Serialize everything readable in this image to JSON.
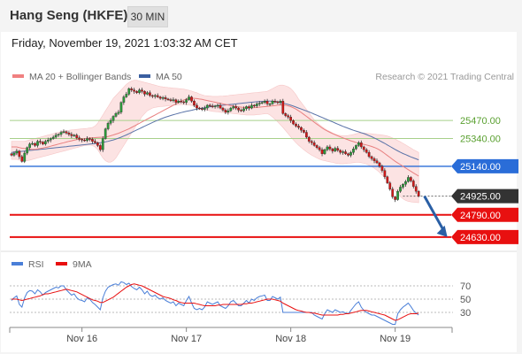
{
  "header": {
    "title": "Hang Seng (HKFE)",
    "timeframe": "30 MIN"
  },
  "datetime": "Friday, November 19, 2021 1:03:32 AM CET",
  "chart_data": [
    {
      "type": "candlestick",
      "legend": [
        {
          "label": "MA 20 + Bollinger Bands",
          "color": "#f08080"
        },
        {
          "label": "MA 50",
          "color": "#3a5fa0"
        }
      ],
      "watermark": "Research © 2021 Trading Central",
      "ylim": [
        24540,
        25790
      ],
      "levels": [
        {
          "label": "25470.00",
          "value": 25470,
          "kind": "resistance",
          "color": "#a8d08a"
        },
        {
          "label": "25340.00",
          "value": 25340,
          "kind": "resistance",
          "color": "#a8d08a"
        },
        {
          "label": "25140.00",
          "value": 25140,
          "kind": "pivot",
          "color": "#2a6dd8"
        },
        {
          "label": "24925.00",
          "value": 24925,
          "kind": "last",
          "color": "#333333"
        },
        {
          "label": "24790.00",
          "value": 24790,
          "kind": "support",
          "color": "#e81010"
        },
        {
          "label": "24630.00",
          "value": 24630,
          "kind": "support",
          "color": "#e81010"
        }
      ],
      "arrow": {
        "from": [
          158.2,
          24925
        ],
        "to": [
          167.0,
          24630
        ],
        "direction": "down",
        "color": "#2a5fa5"
      },
      "x_ticks": [
        {
          "label": "Nov 16",
          "index": 27
        },
        {
          "label": "Nov 17",
          "index": 67
        },
        {
          "label": "Nov 18",
          "index": 107
        },
        {
          "label": "Nov 19",
          "index": 147
        }
      ],
      "close": [
        25220,
        25235,
        25250,
        25210,
        25175,
        25235,
        25275,
        25300,
        25305,
        25290,
        25320,
        25315,
        25300,
        25320,
        25330,
        25340,
        25350,
        25365,
        25370,
        25385,
        25390,
        25380,
        25370,
        25360,
        25365,
        25345,
        25335,
        25330,
        25325,
        25340,
        25335,
        25320,
        25310,
        25290,
        25260,
        25340,
        25410,
        25450,
        25470,
        25500,
        25520,
        25530,
        25600,
        25640,
        25660,
        25700,
        25690,
        25680,
        25670,
        25690,
        25680,
        25660,
        25670,
        25650,
        25645,
        25650,
        25640,
        25630,
        25635,
        25625,
        25620,
        25615,
        25620,
        25600,
        25610,
        25605,
        25600,
        25620,
        25640,
        25610,
        25580,
        25560,
        25555,
        25550,
        25560,
        25580,
        25575,
        25570,
        25575,
        25580,
        25560,
        25545,
        25530,
        25540,
        25560,
        25570,
        25560,
        25545,
        25540,
        25555,
        25570,
        25560,
        25580,
        25575,
        25590,
        25595,
        25600,
        25610,
        25590,
        25590,
        25610,
        25605,
        25600,
        25610,
        25520,
        25505,
        25495,
        25470,
        25445,
        25430,
        25420,
        25400,
        25385,
        25350,
        25320,
        25310,
        25290,
        25275,
        25260,
        25230,
        25260,
        25280,
        25265,
        25250,
        25270,
        25255,
        25240,
        25245,
        25230,
        25220,
        25240,
        25265,
        25290,
        25310,
        25280,
        25260,
        25240,
        25210,
        25195,
        25180,
        25165,
        25140,
        25110,
        25065,
        25020,
        24975,
        24920,
        24900,
        24960,
        24990,
        25010,
        25030,
        25060,
        25035,
        24995,
        24960,
        24925
      ],
      "ma20": [
        25280,
        25280,
        25280,
        25275,
        25270,
        25268,
        25266,
        25264,
        25262,
        25262,
        25265,
        25268,
        25272,
        25276,
        25280,
        25285,
        25290,
        25295,
        25300,
        25305,
        25310,
        25315,
        25320,
        25324,
        25328,
        25332,
        25335,
        25338,
        25340,
        25342,
        25344,
        25346,
        25347,
        25348,
        25349,
        25350,
        25352,
        25355,
        25360,
        25366,
        25372,
        25378,
        25386,
        25394,
        25402,
        25410,
        25420,
        25430,
        25440,
        25450,
        25460,
        25470,
        25480,
        25490,
        25500,
        25510,
        25520,
        25530,
        25540,
        25550,
        25560,
        25570,
        25580,
        25590,
        25600,
        25610,
        25618,
        25624,
        25628,
        25630,
        25630,
        25628,
        25625,
        25622,
        25618,
        25614,
        25610,
        25606,
        25602,
        25598,
        25594,
        25590,
        25586,
        25582,
        25578,
        25574,
        25571,
        25568,
        25566,
        25564,
        25563,
        25562,
        25562,
        25563,
        25564,
        25566,
        25568,
        25570,
        25572,
        25574,
        25576,
        25578,
        25580,
        25582,
        25582,
        25580,
        25576,
        25570,
        25562,
        25552,
        25540,
        25528,
        25514,
        25500,
        25486,
        25472,
        25458,
        25444,
        25430,
        25416,
        25404,
        25394,
        25385,
        25376,
        25368,
        25360,
        25352,
        25345,
        25338,
        25331,
        25324,
        25318,
        25312,
        25307,
        25302,
        25298,
        25294,
        25289,
        25283,
        25276,
        25268,
        25258,
        25246,
        25232,
        25218,
        25204,
        25190,
        25176,
        25164,
        25152,
        25140,
        25128,
        25116,
        25104,
        25092,
        25081,
        25070
      ],
      "bb_upper": [
        25320,
        25320,
        25320,
        25320,
        25320,
        25320,
        25325,
        25330,
        25335,
        25340,
        25345,
        25350,
        25355,
        25360,
        25365,
        25370,
        25375,
        25380,
        25385,
        25390,
        25395,
        25398,
        25400,
        25402,
        25404,
        25406,
        25408,
        25410,
        25412,
        25414,
        25416,
        25420,
        25430,
        25450,
        25480,
        25510,
        25540,
        25570,
        25600,
        25630,
        25650,
        25670,
        25690,
        25710,
        25730,
        25745,
        25755,
        25760,
        25760,
        25755,
        25750,
        25745,
        25740,
        25735,
        25730,
        25725,
        25720,
        25715,
        25712,
        25710,
        25708,
        25706,
        25704,
        25702,
        25700,
        25698,
        25696,
        25692,
        25688,
        25682,
        25676,
        25670,
        25662,
        25655,
        25650,
        25648,
        25646,
        25644,
        25644,
        25644,
        25645,
        25646,
        25648,
        25650,
        25652,
        25654,
        25656,
        25658,
        25660,
        25662,
        25664,
        25666,
        25668,
        25670,
        25672,
        25674,
        25676,
        25678,
        25680,
        25690,
        25700,
        25710,
        25720,
        25725,
        25725,
        25720,
        25712,
        25700,
        25680,
        25655,
        25625,
        25600,
        25575,
        25550,
        25525,
        25500,
        25475,
        25455,
        25440,
        25425,
        25412,
        25400,
        25390,
        25380,
        25372,
        25366,
        25362,
        25360,
        25360,
        25362,
        25366,
        25370,
        25374,
        25378,
        25380,
        25380,
        25378,
        25376,
        25374,
        25372,
        25370,
        25368,
        25365,
        25362,
        25358,
        25352,
        25344,
        25336,
        25326,
        25316,
        25305,
        25294,
        25283,
        25272,
        25260,
        25250,
        25240
      ],
      "bb_lower": [
        25190,
        25190,
        25190,
        25185,
        25180,
        25180,
        25180,
        25185,
        25190,
        25195,
        25200,
        25205,
        25210,
        25215,
        25220,
        25225,
        25230,
        25235,
        25240,
        25245,
        25250,
        25255,
        25260,
        25265,
        25270,
        25275,
        25280,
        25285,
        25290,
        25292,
        25294,
        25290,
        25280,
        25260,
        25230,
        25200,
        25180,
        25170,
        25170,
        25180,
        25200,
        25230,
        25260,
        25290,
        25320,
        25350,
        25380,
        25410,
        25440,
        25470,
        25500,
        25520,
        25540,
        25550,
        25560,
        25565,
        25568,
        25570,
        25572,
        25574,
        25576,
        25578,
        25580,
        25582,
        25584,
        25585,
        25585,
        25584,
        25582,
        25578,
        25572,
        25566,
        25560,
        25554,
        25548,
        25544,
        25540,
        25536,
        25534,
        25532,
        25530,
        25528,
        25526,
        25524,
        25522,
        25520,
        25518,
        25516,
        25514,
        25512,
        25510,
        25510,
        25510,
        25510,
        25512,
        25514,
        25516,
        25518,
        25520,
        25510,
        25495,
        25478,
        25460,
        25440,
        25420,
        25398,
        25375,
        25352,
        25330,
        25310,
        25292,
        25275,
        25260,
        25245,
        25232,
        25220,
        25210,
        25200,
        25192,
        25185,
        25180,
        25176,
        25172,
        25168,
        25164,
        25160,
        25158,
        25158,
        25160,
        25162,
        25164,
        25166,
        25168,
        25168,
        25166,
        25162,
        25156,
        25148,
        25138,
        25126,
        25112,
        25096,
        25078,
        25058,
        25036,
        25012,
        24988,
        24964,
        24942,
        24922,
        24906,
        24894,
        24888,
        24884,
        24882,
        24880,
        24878
      ],
      "ma50": [
        25240,
        25242,
        25244,
        25246,
        25248,
        25250,
        25252,
        25254,
        25256,
        25258,
        25260,
        25262,
        25264,
        25266,
        25268,
        25270,
        25272,
        25274,
        25276,
        25278,
        25280,
        25282,
        25284,
        25286,
        25288,
        25290,
        25292,
        25294,
        25296,
        25298,
        25300,
        25302,
        25304,
        25307,
        25310,
        25313,
        25316,
        25320,
        25325,
        25330,
        25336,
        25343,
        25350,
        25358,
        25366,
        25375,
        25384,
        25393,
        25402,
        25411,
        25420,
        25429,
        25438,
        25447,
        25456,
        25464,
        25472,
        25480,
        25487,
        25494,
        25500,
        25506,
        25512,
        25517,
        25522,
        25527,
        25532,
        25536,
        25540,
        25544,
        25548,
        25552,
        25556,
        25559,
        25562,
        25565,
        25568,
        25571,
        25574,
        25576,
        25578,
        25580,
        25582,
        25584,
        25586,
        25588,
        25590,
        25592,
        25594,
        25596,
        25598,
        25600,
        25602,
        25604,
        25606,
        25607,
        25608,
        25609,
        25610,
        25610,
        25609,
        25607,
        25604,
        25600,
        25596,
        25591,
        25586,
        25580,
        25574,
        25567,
        25560,
        25553,
        25546,
        25539,
        25532,
        25524,
        25516,
        25508,
        25500,
        25492,
        25484,
        25476,
        25468,
        25460,
        25452,
        25444,
        25436,
        25428,
        25421,
        25414,
        25407,
        25400,
        25394,
        25388,
        25382,
        25376,
        25369,
        25361,
        25353,
        25344,
        25335,
        25325,
        25315,
        25305,
        25294,
        25283,
        25272,
        25261,
        25251,
        25241,
        25232,
        25224,
        25216,
        25208,
        25201,
        25194,
        25187
      ]
    },
    {
      "type": "line",
      "legend": [
        {
          "label": "RSI",
          "color": "#4a7fd8"
        },
        {
          "label": "9MA",
          "color": "#e81010"
        }
      ],
      "ylim": [
        10,
        90
      ],
      "y_ticks": [
        {
          "label": "70",
          "value": 70
        },
        {
          "label": "50",
          "value": 50
        },
        {
          "label": "30",
          "value": 30
        }
      ],
      "rsi": [
        48,
        52,
        55,
        42,
        38,
        52,
        60,
        63,
        62,
        58,
        64,
        61,
        56,
        60,
        62,
        64,
        66,
        68,
        67,
        70,
        70,
        64,
        60,
        56,
        58,
        52,
        49,
        48,
        46,
        52,
        50,
        45,
        42,
        38,
        34,
        52,
        62,
        68,
        70,
        72,
        73,
        71,
        76,
        75,
        72,
        74,
        69,
        66,
        64,
        68,
        64,
        58,
        62,
        56,
        54,
        56,
        52,
        50,
        52,
        48,
        46,
        44,
        46,
        40,
        44,
        42,
        40,
        48,
        54,
        44,
        36,
        34,
        36,
        34,
        38,
        46,
        44,
        42,
        44,
        46,
        40,
        38,
        36,
        40,
        46,
        48,
        44,
        40,
        40,
        44,
        48,
        44,
        50,
        48,
        52,
        54,
        55,
        56,
        48,
        48,
        54,
        52,
        50,
        53,
        30,
        30,
        30,
        30,
        30,
        30,
        30,
        30,
        30,
        30,
        30,
        30,
        26,
        24,
        22,
        20,
        28,
        34,
        32,
        30,
        34,
        32,
        30,
        31,
        29,
        28,
        33,
        38,
        43,
        46,
        38,
        33,
        30,
        28,
        26,
        26,
        24,
        22,
        20,
        18,
        16,
        14,
        12,
        12,
        28,
        34,
        38,
        41,
        44,
        39,
        33,
        29,
        26
      ],
      "rsi_ma9": [
        50,
        50,
        50,
        49,
        48,
        49,
        50,
        51,
        52,
        53,
        54,
        55,
        57,
        58,
        58,
        59,
        60,
        61,
        62,
        63,
        64,
        65,
        64,
        63,
        62,
        61,
        59,
        57,
        55,
        53,
        51,
        49,
        48,
        47,
        45,
        45,
        47,
        49,
        51,
        53,
        56,
        59,
        62,
        65,
        68,
        70,
        72,
        73,
        72,
        71,
        70,
        68,
        66,
        64,
        62,
        60,
        58,
        56,
        54,
        53,
        52,
        51,
        49,
        48,
        46,
        45,
        44,
        44,
        44,
        44,
        44,
        43,
        42,
        41,
        40,
        40,
        40,
        40,
        40,
        41,
        41,
        42,
        42,
        42,
        42,
        42,
        42,
        42,
        42,
        43,
        43,
        44,
        44,
        45,
        46,
        47,
        48,
        49,
        50,
        50,
        50,
        49,
        48,
        47,
        44,
        42,
        40,
        38,
        36,
        34,
        33,
        32,
        31,
        30,
        30,
        29,
        29,
        28,
        27,
        26,
        26,
        26,
        26,
        26,
        26,
        26,
        27,
        27,
        28,
        28,
        29,
        30,
        31,
        32,
        33,
        33,
        33,
        32,
        31,
        30,
        29,
        28,
        27,
        26,
        24,
        22,
        20,
        18,
        19,
        21,
        23,
        25,
        27,
        28,
        28,
        28,
        29
      ]
    }
  ]
}
